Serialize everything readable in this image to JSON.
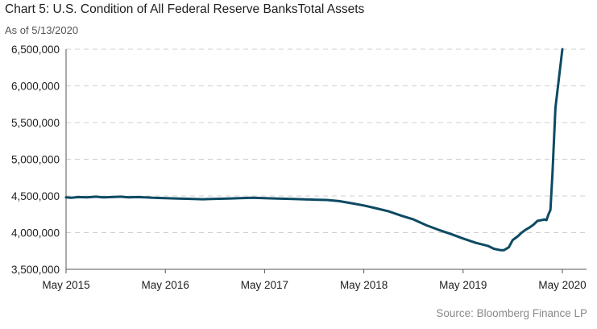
{
  "chart_data": {
    "type": "line",
    "title": "Chart 5: U.S. Condition of All Federal Reserve BanksTotal Assets",
    "subtitle": "As of 5/13/2020",
    "source": "Source: Bloomberg Finance LP",
    "xlabel": "",
    "ylabel": "",
    "xlim": [
      2015.37,
      2020.37
    ],
    "ylim": [
      3500000,
      6500000
    ],
    "x_ticks": [
      {
        "value": 2015.37,
        "label": "May 2015"
      },
      {
        "value": 2016.37,
        "label": "May 2016"
      },
      {
        "value": 2017.37,
        "label": "May 2017"
      },
      {
        "value": 2018.37,
        "label": "May 2018"
      },
      {
        "value": 2019.37,
        "label": "May 2019"
      },
      {
        "value": 2020.37,
        "label": "May 2020"
      }
    ],
    "y_ticks": [
      {
        "value": 3500000,
        "label": "3,500,000"
      },
      {
        "value": 4000000,
        "label": "4,000,000"
      },
      {
        "value": 4500000,
        "label": "4,500,000"
      },
      {
        "value": 5000000,
        "label": "5,000,000"
      },
      {
        "value": 5500000,
        "label": "5,500,000"
      },
      {
        "value": 6000000,
        "label": "6,000,000"
      },
      {
        "value": 6500000,
        "label": "6,500,000"
      }
    ],
    "grid": "horizontal-dashed",
    "legend": "none",
    "series": [
      {
        "color": "#0d4a63",
        "x": [
          2015.37,
          2015.42,
          2015.5,
          2015.58,
          2015.67,
          2015.75,
          2015.83,
          2015.92,
          2016.0,
          2016.08,
          2016.17,
          2016.25,
          2016.37,
          2016.5,
          2016.62,
          2016.75,
          2016.87,
          2017.0,
          2017.12,
          2017.25,
          2017.37,
          2017.5,
          2017.62,
          2017.75,
          2017.87,
          2018.0,
          2018.12,
          2018.25,
          2018.37,
          2018.5,
          2018.62,
          2018.75,
          2018.87,
          2019.0,
          2019.12,
          2019.25,
          2019.37,
          2019.5,
          2019.62,
          2019.68,
          2019.75,
          2019.78,
          2019.83,
          2019.87,
          2019.92,
          2019.96,
          2020.0,
          2020.04,
          2020.08,
          2020.12,
          2020.16,
          2020.19,
          2020.21,
          2020.23,
          2020.25,
          2020.27,
          2020.3,
          2020.37
        ],
        "values": [
          4480000,
          4475000,
          4485000,
          4480000,
          4490000,
          4480000,
          4485000,
          4490000,
          4480000,
          4485000,
          4480000,
          4475000,
          4470000,
          4465000,
          4460000,
          4455000,
          4460000,
          4465000,
          4470000,
          4475000,
          4470000,
          4465000,
          4460000,
          4455000,
          4450000,
          4445000,
          4430000,
          4400000,
          4370000,
          4330000,
          4290000,
          4230000,
          4180000,
          4100000,
          4040000,
          3980000,
          3920000,
          3860000,
          3820000,
          3780000,
          3760000,
          3760000,
          3800000,
          3900000,
          3950000,
          4000000,
          4040000,
          4070000,
          4110000,
          4160000,
          4170000,
          4180000,
          4170000,
          4250000,
          4310000,
          4800000,
          5700000,
          6500000
        ]
      }
    ]
  }
}
